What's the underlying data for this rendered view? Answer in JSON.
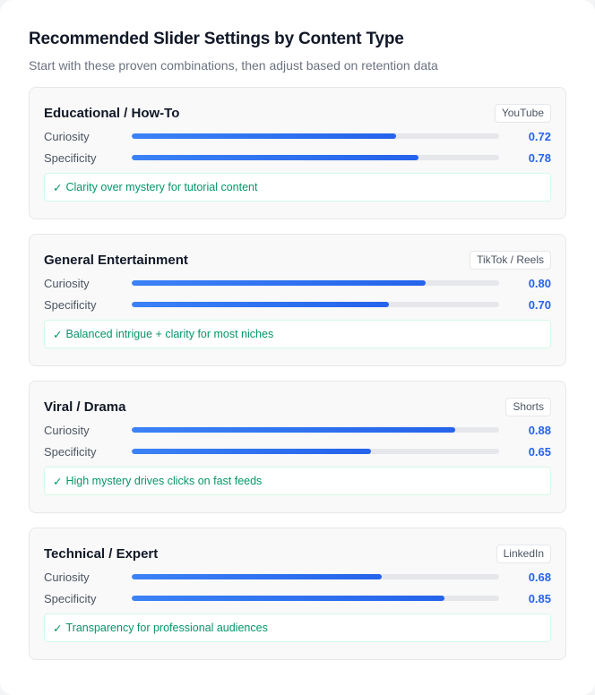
{
  "header": {
    "title": "Recommended Slider Settings by Content Type",
    "subtitle": "Start with these proven combinations, then adjust based on retention data"
  },
  "colors": {
    "accent": "#2563eb",
    "success": "#059669",
    "track": "#e5e7eb"
  },
  "groups": [
    {
      "title": "Educational / How-To",
      "platform": "YouTube",
      "sliders": [
        {
          "label": "Curiosity",
          "value": "0.72",
          "pct": 72
        },
        {
          "label": "Specificity",
          "value": "0.78",
          "pct": 78
        }
      ],
      "note_icon": "✓",
      "note": "Clarity over mystery for tutorial content"
    },
    {
      "title": "General Entertainment",
      "platform": "TikTok / Reels",
      "sliders": [
        {
          "label": "Curiosity",
          "value": "0.80",
          "pct": 80
        },
        {
          "label": "Specificity",
          "value": "0.70",
          "pct": 70
        }
      ],
      "note_icon": "✓",
      "note": "Balanced intrigue + clarity for most niches"
    },
    {
      "title": "Viral / Drama",
      "platform": "Shorts",
      "sliders": [
        {
          "label": "Curiosity",
          "value": "0.88",
          "pct": 88
        },
        {
          "label": "Specificity",
          "value": "0.65",
          "pct": 65
        }
      ],
      "note_icon": "✓",
      "note": "High mystery drives clicks on fast feeds"
    },
    {
      "title": "Technical / Expert",
      "platform": "LinkedIn",
      "sliders": [
        {
          "label": "Curiosity",
          "value": "0.68",
          "pct": 68
        },
        {
          "label": "Specificity",
          "value": "0.85",
          "pct": 85
        }
      ],
      "note_icon": "✓",
      "note": "Transparency for professional audiences"
    }
  ]
}
